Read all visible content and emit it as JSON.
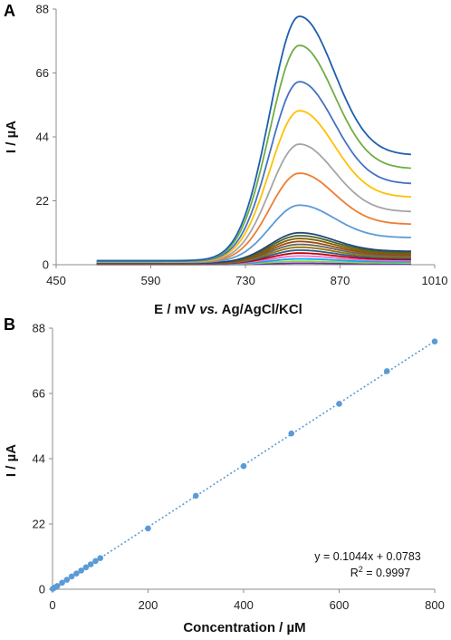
{
  "chart_data": [
    {
      "panel": "A",
      "type": "line",
      "xlabel": "E / mV",
      "xlabel_italic": "vs.",
      "xlabel_suffix": "Ag/AgCl/KCl",
      "ylabel": "I / µA",
      "xlim": [
        450,
        1010
      ],
      "ylim": [
        0,
        88
      ],
      "xticks": [
        450,
        590,
        730,
        870,
        1010
      ],
      "yticks": [
        0,
        22,
        44,
        66,
        88
      ],
      "peak_potential": 810,
      "x_start": 510,
      "x_end": 975,
      "series": [
        {
          "peak": 85.5,
          "start": 1.4,
          "end": 37.7,
          "color": "#1f5fae"
        },
        {
          "peak": 75.5,
          "start": 1.3,
          "end": 33.0,
          "color": "#70ad47"
        },
        {
          "peak": 63.0,
          "start": 1.2,
          "end": 27.8,
          "color": "#4472c4"
        },
        {
          "peak": 53.0,
          "start": 1.1,
          "end": 23.2,
          "color": "#ffc000"
        },
        {
          "peak": 41.5,
          "start": 1.0,
          "end": 18.2,
          "color": "#a5a5a5"
        },
        {
          "peak": 31.5,
          "start": 0.9,
          "end": 13.9,
          "color": "#ed7d31"
        },
        {
          "peak": 20.5,
          "start": 0.8,
          "end": 9.3,
          "color": "#5b9bd5"
        },
        {
          "peak": 11.0,
          "start": 0.6,
          "end": 4.6,
          "color": "#264478"
        },
        {
          "peak": 10.0,
          "start": 0.55,
          "end": 4.2,
          "color": "#43682b"
        },
        {
          "peak": 9.0,
          "start": 0.5,
          "end": 3.8,
          "color": "#7f6000"
        },
        {
          "peak": 8.0,
          "start": 0.45,
          "end": 3.4,
          "color": "#9e480e"
        },
        {
          "peak": 7.0,
          "start": 0.4,
          "end": 3.0,
          "color": "#636363"
        },
        {
          "peak": 6.0,
          "start": 0.35,
          "end": 2.6,
          "color": "#997300"
        },
        {
          "peak": 5.0,
          "start": 0.3,
          "end": 2.2,
          "color": "#255e91"
        },
        {
          "peak": 4.0,
          "start": 0.25,
          "end": 1.8,
          "color": "#c00000"
        },
        {
          "peak": 3.0,
          "start": 0.2,
          "end": 1.4,
          "color": "#ff66cc"
        },
        {
          "peak": 2.0,
          "start": 0.15,
          "end": 1.0,
          "color": "#00b0f0"
        },
        {
          "peak": 1.2,
          "start": 0.1,
          "end": 0.6,
          "color": "#92d050"
        },
        {
          "peak": 0.5,
          "start": 0.05,
          "end": 0.3,
          "color": "#7030a0"
        }
      ]
    },
    {
      "panel": "B",
      "type": "scatter",
      "xlabel": "Concentration / µM",
      "ylabel": "I / µA",
      "xlim": [
        0,
        800
      ],
      "ylim": [
        0,
        88
      ],
      "xticks": [
        0,
        200,
        400,
        600,
        800
      ],
      "yticks": [
        0,
        22,
        44,
        66,
        88
      ],
      "points": {
        "x": [
          0.5,
          5,
          10,
          20,
          30,
          40,
          50,
          60,
          70,
          80,
          90,
          100,
          200,
          300,
          400,
          500,
          600,
          700,
          800
        ],
        "y": [
          0.13,
          0.6,
          1.1,
          2.2,
          3.2,
          4.3,
          5.3,
          6.3,
          7.4,
          8.4,
          9.5,
          10.5,
          20.5,
          31.5,
          41.5,
          52.5,
          62.5,
          73.5,
          83.5
        ]
      },
      "trendline": {
        "slope": 0.1044,
        "intercept": 0.0783,
        "style": "dotted"
      },
      "equation": "y = 0.1044x + 0.0783",
      "r_squared_label": "R",
      "r_squared_sup": "2",
      "r_squared_value": " = 0.9997",
      "marker_color": "#5b9bd5"
    }
  ]
}
